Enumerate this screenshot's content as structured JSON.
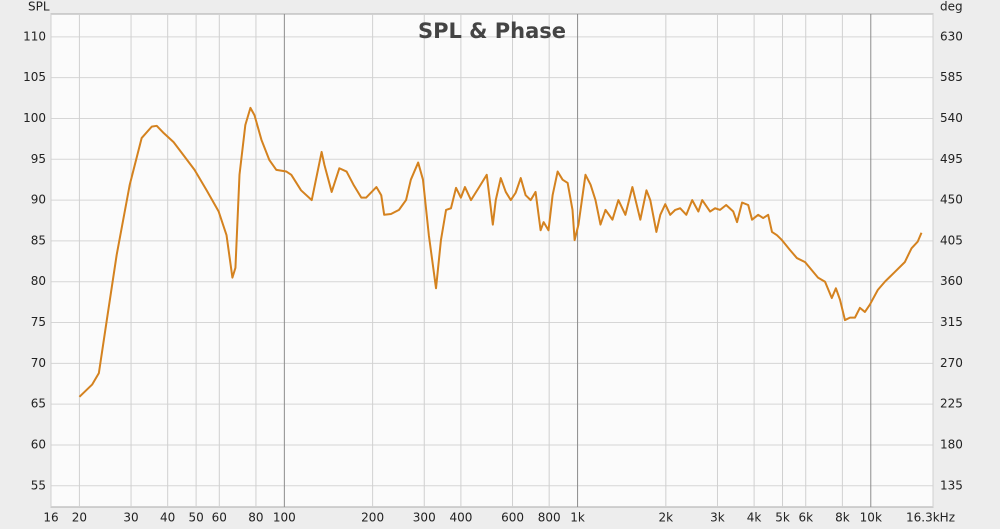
{
  "chart_data": {
    "type": "line",
    "title": "SPL & Phase",
    "y_label": "SPL",
    "y2_label": "deg",
    "xscale": "log",
    "grid": true,
    "xlim": [
      16,
      16300
    ],
    "ylim": [
      52.4,
      112.8
    ],
    "y2lim": [
      111.6,
      655.2
    ],
    "xticks": [
      16,
      20,
      30,
      40,
      50,
      60,
      80,
      100,
      200,
      300,
      400,
      600,
      800,
      {
        "value": 1000,
        "label": "1k"
      },
      {
        "value": 2000,
        "label": "2k"
      },
      {
        "value": 3000,
        "label": "3k"
      },
      {
        "value": 4000,
        "label": "4k"
      },
      {
        "value": 5000,
        "label": "5k"
      },
      {
        "value": 6000,
        "label": "6k"
      },
      {
        "value": 8000,
        "label": "8k"
      },
      {
        "value": 10000,
        "label": "10k"
      },
      {
        "value": 16300,
        "label": "16.3kHz"
      }
    ],
    "yticks": [
      55,
      60,
      65,
      70,
      75,
      80,
      85,
      90,
      95,
      100,
      105,
      110
    ],
    "y2ticks": [
      135,
      180,
      225,
      270,
      315,
      360,
      405,
      450,
      495,
      540,
      585,
      630
    ],
    "x": [
      20,
      22.1,
      23.3,
      24.8,
      26.8,
      29.7,
      32.6,
      35.3,
      36.7,
      38.8,
      41.9,
      45.3,
      49.4,
      54.3,
      59.7,
      63.5,
      66.5,
      68.1,
      70.3,
      73.6,
      76.6,
      79.1,
      83.5,
      88.9,
      93.9,
      101.6,
      105.6,
      114,
      124,
      134,
      137,
      145,
      154,
      163,
      172,
      183,
      190,
      206,
      214,
      219,
      231,
      246,
      260,
      270,
      286,
      297,
      311,
      329,
      342,
      356,
      370,
      385,
      400,
      413,
      433,
      460,
      490,
      514,
      526,
      547,
      569,
      592,
      615,
      640,
      665,
      692,
      719,
      748,
      766,
      796,
      822,
      855,
      889,
      925,
      961,
      977,
      1007,
      1064,
      1107,
      1151,
      1197,
      1245,
      1315,
      1378,
      1456,
      1538,
      1637,
      1718,
      1770,
      1857,
      1915,
      1991,
      2070,
      2153,
      2239,
      2349,
      2460,
      2582,
      2661,
      2831,
      2944,
      3062,
      3212,
      3396,
      3499,
      3639,
      3819,
      3936,
      4130,
      4295,
      4467,
      4603,
      4786,
      4977,
      5297,
      5598,
      5970,
      6295,
      6607,
      6982,
      7362,
      7603,
      7852,
      8166,
      8492,
      8831,
      9183,
      9550,
      9931,
      10570,
      11170,
      12080,
      13060,
      13770,
      14450,
      14890
    ],
    "series": [
      {
        "color": "#d4821f",
        "values": [
          65.9,
          67.4,
          68.8,
          75.3,
          83.3,
          91.9,
          97.6,
          99.0,
          99.1,
          98.2,
          97.1,
          95.5,
          93.7,
          91.2,
          88.6,
          85.7,
          80.5,
          81.7,
          93.1,
          99.2,
          101.3,
          100.4,
          97.4,
          94.9,
          93.7,
          93.5,
          93.1,
          91.2,
          90.0,
          95.9,
          94.3,
          91.0,
          93.9,
          93.5,
          91.9,
          90.3,
          90.3,
          91.6,
          90.6,
          88.2,
          88.3,
          88.8,
          90.0,
          92.5,
          94.6,
          92.5,
          85.7,
          79.2,
          85.1,
          88.8,
          89.0,
          91.5,
          90.3,
          91.6,
          90.0,
          91.5,
          93.1,
          87.0,
          90.0,
          92.7,
          91.0,
          90.0,
          90.9,
          92.7,
          90.6,
          90.0,
          91.0,
          86.3,
          87.3,
          86.3,
          90.6,
          93.5,
          92.5,
          92.1,
          88.8,
          85.1,
          87.0,
          93.1,
          91.9,
          90.0,
          87.0,
          88.8,
          87.6,
          90.0,
          88.2,
          91.6,
          87.6,
          91.2,
          90.0,
          86.1,
          88.2,
          89.5,
          88.2,
          88.8,
          89.0,
          88.2,
          90.0,
          88.6,
          90.0,
          88.6,
          89.0,
          88.8,
          89.4,
          88.6,
          87.3,
          89.7,
          89.4,
          87.6,
          88.2,
          87.8,
          88.2,
          86.1,
          85.7,
          85.1,
          83.9,
          82.9,
          82.4,
          81.4,
          80.5,
          80.0,
          78.0,
          79.2,
          77.8,
          75.3,
          75.6,
          75.6,
          76.8,
          76.3,
          77.2,
          79.0,
          80.0,
          81.2,
          82.4,
          84.1,
          84.9,
          86.0
        ]
      }
    ]
  }
}
